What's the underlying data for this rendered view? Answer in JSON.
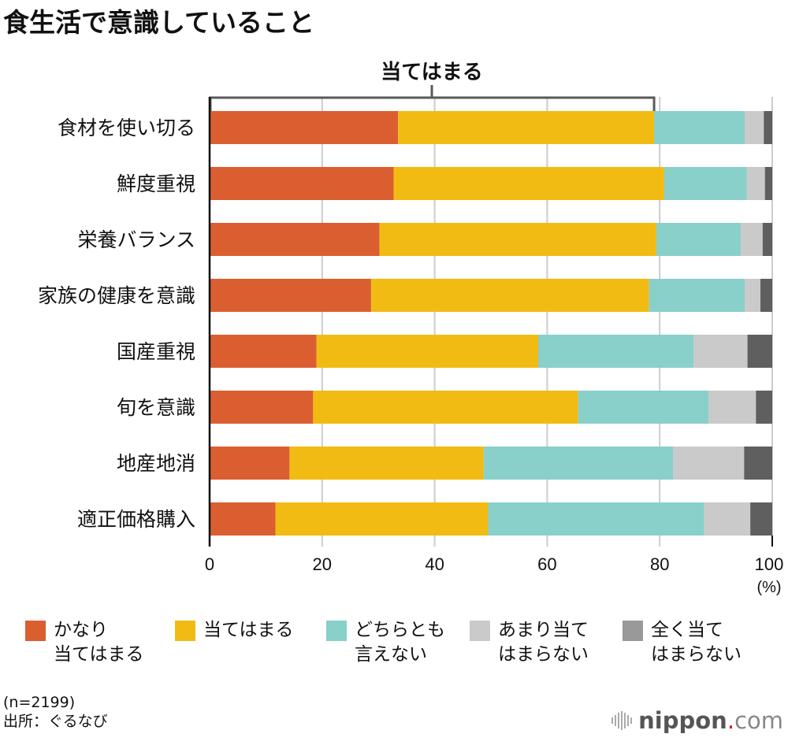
{
  "header": {
    "title": "食生活で意識していること"
  },
  "bracket_label": "当てはまる",
  "chart_data": {
    "type": "bar",
    "orientation": "horizontal",
    "stacked": true,
    "title": "食生活で意識していること",
    "xlabel": "(%)",
    "xlim": [
      0,
      100
    ],
    "xticks": [
      "0",
      "20",
      "40",
      "60",
      "80",
      "100"
    ],
    "grid": true,
    "legend_position": "bottom",
    "categories": [
      "食材を使い切る",
      "鮮度重視",
      "栄養バランス",
      "家族の健康を意識",
      "国産重視",
      "旬を意識",
      "地産地消",
      "適正価格購入"
    ],
    "series": [
      {
        "name": "かなり\n当てはまる",
        "color": "#DB5E31",
        "values": [
          33.5,
          32.7,
          30.2,
          28.7,
          19.0,
          18.4,
          14.2,
          11.7
        ]
      },
      {
        "name": "当てはまる",
        "color": "#F1BB13",
        "values": [
          45.5,
          48.1,
          49.2,
          49.4,
          39.4,
          47.1,
          34.5,
          37.8
        ]
      },
      {
        "name": "どちらとも\n言えない",
        "color": "#89CFCA",
        "values": [
          16.1,
          14.7,
          15.0,
          17.0,
          27.6,
          23.2,
          33.7,
          38.4
        ]
      },
      {
        "name": "あまり当て\nはまらない",
        "color": "#CACACA",
        "values": [
          3.4,
          3.2,
          3.9,
          2.8,
          9.6,
          8.4,
          12.6,
          8.2
        ]
      },
      {
        "name": "全く当て\nはまらない",
        "color": "#5F5F5F",
        "legend_color": "#999999",
        "values": [
          1.5,
          1.3,
          1.7,
          2.1,
          4.4,
          2.9,
          5.0,
          3.9
        ]
      }
    ]
  },
  "footer": {
    "sample": "(n=2199)",
    "source": "出所：ぐるなび",
    "logo_name": "nippon",
    "logo_dot": ".",
    "logo_tld": "com"
  }
}
